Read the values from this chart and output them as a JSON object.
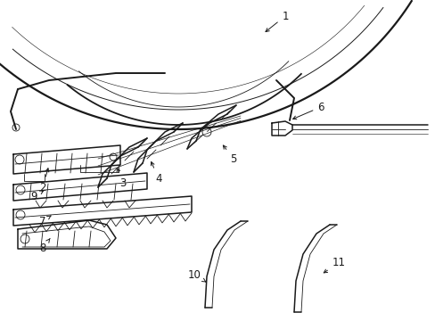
{
  "bg_color": "#ffffff",
  "line_color": "#1a1a1a",
  "lw": 1.1,
  "tlw": 0.6,
  "label_fontsize": 8.5
}
